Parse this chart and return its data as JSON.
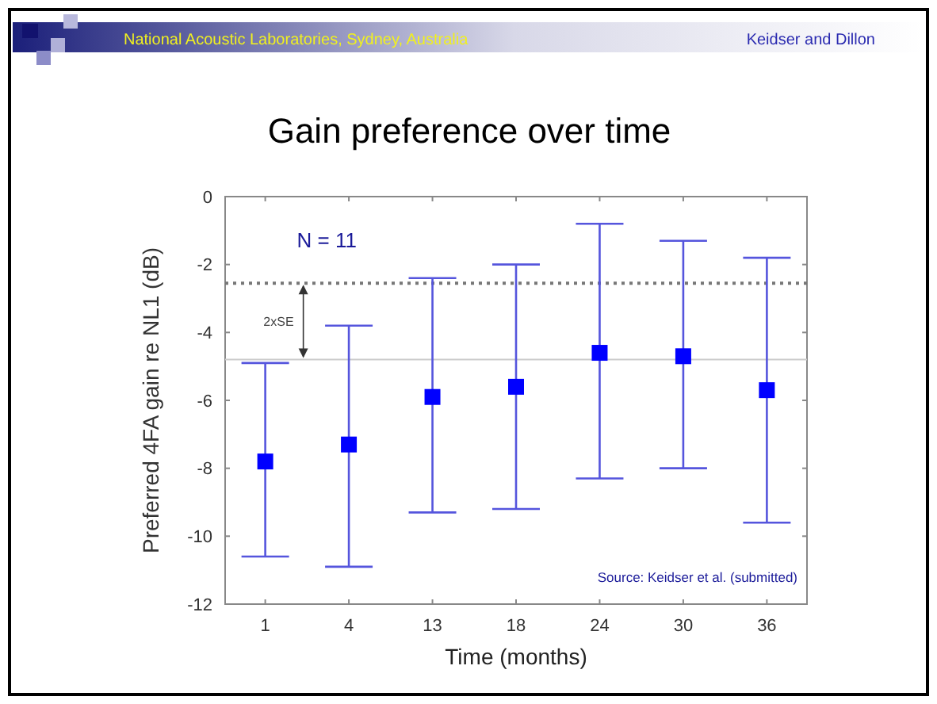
{
  "chart_data": {
    "type": "scatter",
    "title": "Gain preference over time",
    "xlabel": "Time (months)",
    "ylabel": "Preferred 4FA gain re NL1 (dB)",
    "categories": [
      "1",
      "4",
      "13",
      "18",
      "24",
      "30",
      "36"
    ],
    "series": [
      {
        "color": "#0000ff",
        "values": [
          -7.8,
          -7.3,
          -5.9,
          -5.6,
          -4.6,
          -4.7,
          -5.7
        ],
        "errors": [
          [
            -10.6,
            -4.9
          ],
          [
            -10.9,
            -3.8
          ],
          [
            -9.3,
            -2.4
          ],
          [
            -9.2,
            -2.0
          ],
          [
            -8.3,
            -0.8
          ],
          [
            -8.0,
            -1.3
          ],
          [
            -9.6,
            -1.8
          ]
        ]
      }
    ],
    "ylim": [
      -12,
      0
    ],
    "yticks": [
      -12,
      -10,
      -8,
      -6,
      -4,
      -2,
      0
    ],
    "grid": false,
    "marker": "square",
    "ref_lines": [
      {
        "axis": "y",
        "value": -2.55,
        "color": "#777777",
        "line_style": "dotted"
      },
      {
        "axis": "y",
        "value": -4.8,
        "color": "#cccccc",
        "line_style": "solid"
      }
    ],
    "annotations": [
      "National Acoustic Laboratories, Sydney, Australia",
      "Keidser and Dillon",
      "N = 11",
      "2xSE",
      "Source: Keidser et al. (submitted)"
    ]
  }
}
